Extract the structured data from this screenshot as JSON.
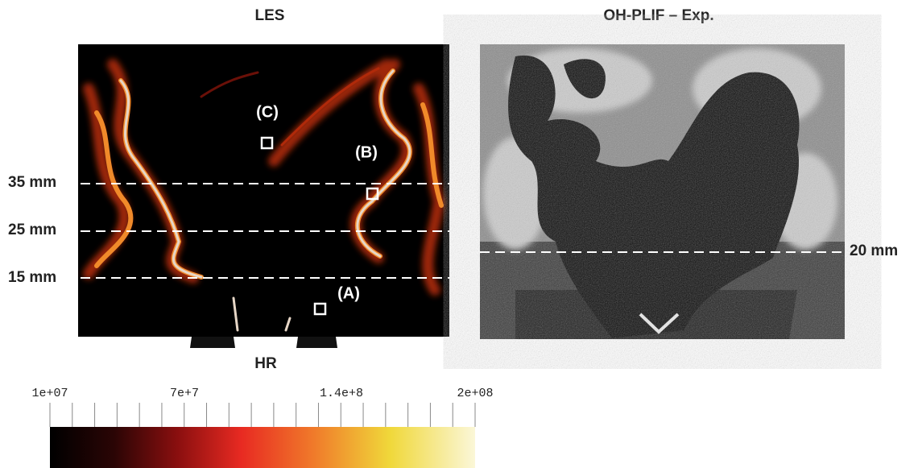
{
  "les_panel": {
    "title": "LES",
    "field_label": "HR",
    "height_labels": [
      "35 mm",
      "25 mm",
      "15 mm"
    ],
    "probe_labels": [
      "(A)",
      "(B)",
      "(C)"
    ]
  },
  "exp_panel": {
    "title": "OH-PLIF – Exp.",
    "height_label": "20 mm"
  },
  "colorbar": {
    "tick_labels": [
      "1e+07",
      "7e+7",
      "1.4e+8",
      "2e+08"
    ]
  }
}
